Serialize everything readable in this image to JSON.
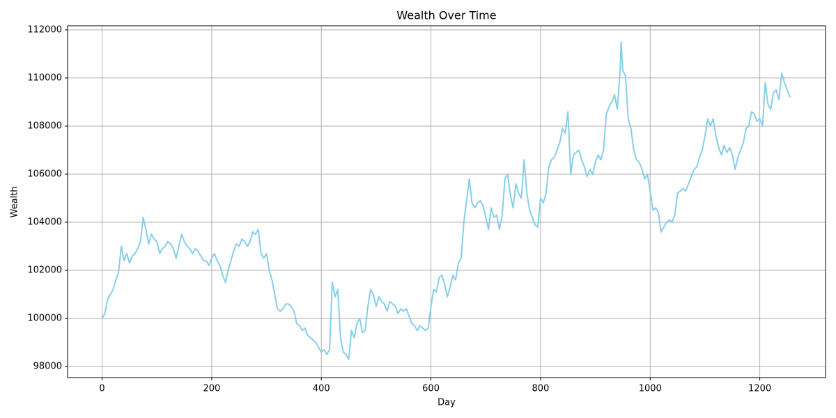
{
  "chart_data": {
    "type": "line",
    "title": "Wealth Over Time",
    "x_label": "Day",
    "y_label": "Wealth",
    "xlim": [
      -63,
      1320
    ],
    "ylim": [
      97540,
      112170
    ],
    "xticks": [
      0,
      200,
      400,
      600,
      800,
      1000,
      1200
    ],
    "yticks": [
      98000,
      100000,
      102000,
      104000,
      106000,
      108000,
      110000,
      112000
    ],
    "grid": true,
    "x": [
      0,
      5,
      10,
      15,
      20,
      25,
      30,
      35,
      40,
      45,
      50,
      55,
      60,
      65,
      70,
      75,
      80,
      85,
      90,
      95,
      100,
      105,
      110,
      115,
      120,
      125,
      130,
      135,
      140,
      145,
      150,
      155,
      160,
      165,
      170,
      175,
      180,
      185,
      190,
      195,
      200,
      205,
      210,
      215,
      220,
      225,
      230,
      235,
      240,
      245,
      250,
      255,
      260,
      265,
      270,
      275,
      280,
      285,
      290,
      295,
      300,
      305,
      310,
      315,
      320,
      325,
      330,
      335,
      340,
      345,
      350,
      355,
      360,
      365,
      370,
      375,
      380,
      385,
      390,
      395,
      400,
      405,
      410,
      415,
      420,
      425,
      430,
      435,
      440,
      445,
      450,
      455,
      460,
      465,
      470,
      475,
      480,
      485,
      490,
      495,
      500,
      505,
      510,
      515,
      520,
      525,
      530,
      535,
      540,
      545,
      550,
      555,
      560,
      565,
      570,
      575,
      580,
      585,
      590,
      595,
      600,
      605,
      610,
      615,
      620,
      625,
      630,
      635,
      640,
      645,
      650,
      655,
      660,
      665,
      670,
      675,
      680,
      685,
      690,
      695,
      700,
      705,
      710,
      715,
      720,
      725,
      730,
      735,
      740,
      745,
      750,
      755,
      760,
      765,
      770,
      775,
      780,
      785,
      790,
      795,
      800,
      805,
      810,
      815,
      820,
      825,
      830,
      835,
      840,
      845,
      850,
      855,
      860,
      865,
      870,
      875,
      880,
      885,
      890,
      895,
      900,
      905,
      910,
      915,
      920,
      925,
      930,
      935,
      940,
      945,
      947,
      950,
      955,
      960,
      965,
      970,
      975,
      980,
      985,
      990,
      995,
      1000,
      1005,
      1010,
      1015,
      1020,
      1025,
      1030,
      1035,
      1040,
      1045,
      1050,
      1055,
      1060,
      1065,
      1070,
      1075,
      1080,
      1085,
      1090,
      1095,
      1100,
      1105,
      1110,
      1115,
      1120,
      1125,
      1130,
      1135,
      1140,
      1145,
      1150,
      1155,
      1160,
      1165,
      1170,
      1175,
      1180,
      1185,
      1190,
      1195,
      1200,
      1205,
      1210,
      1215,
      1220,
      1225,
      1230,
      1235,
      1240,
      1245,
      1250,
      1255
    ],
    "series": [
      {
        "name": "Wealth",
        "color": "#87ceeb",
        "values": [
          100000,
          100200,
          100800,
          101000,
          101200,
          101600,
          101900,
          103000,
          102400,
          102700,
          102300,
          102600,
          102700,
          102900,
          103200,
          104200,
          103700,
          103100,
          103500,
          103300,
          103200,
          102700,
          102900,
          103000,
          103200,
          103100,
          102900,
          102500,
          103000,
          103500,
          103200,
          103000,
          102900,
          102700,
          102900,
          102800,
          102600,
          102400,
          102400,
          102200,
          102500,
          102700,
          102400,
          102200,
          101800,
          101500,
          102000,
          102400,
          102800,
          103100,
          103000,
          103300,
          103200,
          103000,
          103200,
          103600,
          103500,
          103700,
          102700,
          102500,
          102700,
          102000,
          101600,
          101000,
          100400,
          100300,
          100400,
          100600,
          100600,
          100500,
          100300,
          99800,
          99700,
          99500,
          99600,
          99300,
          99200,
          99100,
          99000,
          98800,
          98600,
          98700,
          98500,
          98700,
          101500,
          100900,
          101200,
          99200,
          98600,
          98500,
          98300,
          99500,
          99200,
          99800,
          100000,
          99400,
          99500,
          100500,
          101200,
          101000,
          100500,
          100900,
          100700,
          100600,
          100300,
          100700,
          100600,
          100500,
          100200,
          100400,
          100300,
          100400,
          100100,
          99800,
          99700,
          99500,
          99700,
          99600,
          99500,
          99600,
          100500,
          101200,
          101100,
          101700,
          101800,
          101400,
          100900,
          101300,
          101800,
          101600,
          102300,
          102500,
          104000,
          104900,
          105800,
          104800,
          104600,
          104800,
          104900,
          104700,
          104200,
          103700,
          104600,
          104200,
          104300,
          103700,
          104300,
          105800,
          106000,
          105100,
          104600,
          105600,
          105200,
          105000,
          106600,
          105200,
          104500,
          104200,
          103900,
          103800,
          105000,
          104800,
          105200,
          106300,
          106600,
          106700,
          107000,
          107300,
          107900,
          107700,
          108600,
          106000,
          106800,
          106900,
          107000,
          106600,
          106300,
          105900,
          106200,
          106000,
          106500,
          106800,
          106600,
          107000,
          108500,
          108800,
          109000,
          109300,
          108700,
          110200,
          111500,
          110300,
          110100,
          108300,
          107900,
          107000,
          106600,
          106500,
          106200,
          105800,
          106000,
          105300,
          104500,
          104600,
          104400,
          103600,
          103800,
          104000,
          104100,
          104000,
          104300,
          105200,
          105300,
          105400,
          105300,
          105600,
          105900,
          106200,
          106300,
          106700,
          107000,
          107600,
          108300,
          108000,
          108300,
          107600,
          107100,
          106800,
          107200,
          106900,
          107100,
          106800,
          106200,
          106700,
          107000,
          107300,
          107900,
          108000,
          108600,
          108500,
          108200,
          108300,
          108000,
          109800,
          108900,
          108700,
          109400,
          109500,
          109100,
          110200,
          109800,
          109500,
          109200
        ]
      }
    ]
  }
}
